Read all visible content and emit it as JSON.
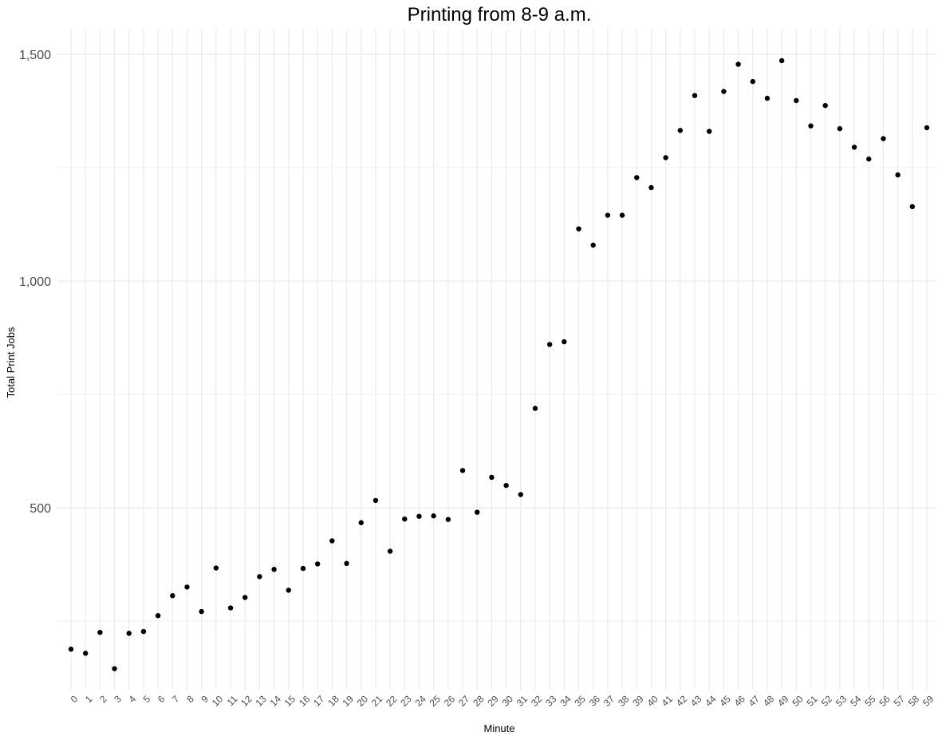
{
  "chart_data": {
    "type": "scatter",
    "title": "Printing from 8-9 a.m.",
    "xlabel": "Minute",
    "ylabel": "Total Print Jobs",
    "x": [
      0,
      1,
      2,
      3,
      4,
      5,
      6,
      7,
      8,
      9,
      10,
      11,
      12,
      13,
      14,
      15,
      16,
      17,
      18,
      19,
      20,
      21,
      22,
      23,
      24,
      25,
      26,
      27,
      28,
      29,
      30,
      31,
      32,
      33,
      34,
      35,
      36,
      37,
      38,
      39,
      40,
      41,
      42,
      43,
      44,
      45,
      46,
      47,
      48,
      49,
      50,
      51,
      52,
      53,
      54,
      55,
      56,
      57,
      58,
      59
    ],
    "y": [
      188,
      179,
      225,
      145,
      223,
      227,
      262,
      306,
      325,
      271,
      367,
      279,
      302,
      348,
      364,
      318,
      366,
      376,
      427,
      377,
      467,
      516,
      404,
      475,
      481,
      482,
      474,
      582,
      490,
      567,
      549,
      529,
      719,
      860,
      866,
      1115,
      1079,
      1145,
      1145,
      1228,
      1206,
      1272,
      1332,
      1409,
      1330,
      1418,
      1478,
      1440,
      1403,
      1486,
      1398,
      1342,
      1387,
      1336,
      1295,
      1269,
      1314,
      1234,
      1164,
      1338
    ],
    "x_tick_labels": [
      "0",
      "1",
      "2",
      "3",
      "4",
      "5",
      "6",
      "7",
      "8",
      "9",
      "10",
      "11",
      "12",
      "13",
      "14",
      "15",
      "16",
      "17",
      "18",
      "19",
      "20",
      "21",
      "22",
      "23",
      "24",
      "25",
      "26",
      "27",
      "28",
      "29",
      "30",
      "31",
      "32",
      "33",
      "34",
      "35",
      "36",
      "37",
      "38",
      "39",
      "40",
      "41",
      "42",
      "43",
      "44",
      "45",
      "46",
      "47",
      "48",
      "49",
      "50",
      "51",
      "52",
      "53",
      "54",
      "55",
      "56",
      "57",
      "58",
      "59"
    ],
    "y_ticks": [
      500,
      1000,
      1500
    ],
    "y_tick_labels": [
      "500",
      "1,000",
      "1,500"
    ],
    "xlim": [
      0,
      59
    ],
    "ylim": [
      118,
      1548
    ],
    "grid": true,
    "legend": "none",
    "colors": {
      "point": "#000000",
      "grid_major": "#ebebeb",
      "grid_minor": "#f2f2f2",
      "background": "#ffffff"
    }
  }
}
